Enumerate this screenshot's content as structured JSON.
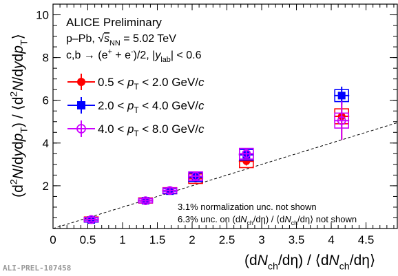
{
  "chart_data": {
    "type": "scatter",
    "title": "ALICE Preliminary",
    "header_lines": [
      {
        "segments": [
          [
            "p–Pb, ",
            "normal"
          ],
          [
            "√",
            "normal"
          ],
          [
            "s",
            "italic-overline"
          ],
          [
            "NN",
            "sub"
          ],
          [
            " = 5.02 TeV",
            "normal"
          ]
        ]
      },
      {
        "segments": [
          [
            "c,b → (e",
            "normal"
          ],
          [
            "+",
            "sup"
          ],
          [
            " + e",
            "normal"
          ],
          [
            "-",
            "sup"
          ],
          [
            ")/2, |",
            "normal"
          ],
          [
            "y",
            "italic"
          ],
          [
            "lab",
            "sub"
          ],
          [
            "| < 0.6",
            "normal"
          ]
        ]
      }
    ],
    "xlabel_parts": [
      [
        "(d",
        "normal"
      ],
      [
        "N",
        "italic"
      ],
      [
        "ch",
        "sub"
      ],
      [
        "/dη) / ⟨d",
        "normal"
      ],
      [
        "N",
        "italic"
      ],
      [
        "ch",
        "sub"
      ],
      [
        "/dη⟩",
        "normal"
      ]
    ],
    "ylabel_parts": [
      [
        "(d",
        "normal"
      ],
      [
        "2",
        "sup"
      ],
      [
        "N",
        "italic"
      ],
      [
        "/d",
        "normal"
      ],
      [
        "y",
        "italic"
      ],
      [
        "d",
        "normal"
      ],
      [
        "p",
        "italic"
      ],
      [
        "T",
        "sub"
      ],
      [
        ") / ⟨d",
        "normal"
      ],
      [
        "2",
        "sup"
      ],
      [
        "N",
        "italic"
      ],
      [
        "/d",
        "normal"
      ],
      [
        "y",
        "italic"
      ],
      [
        "d",
        "normal"
      ],
      [
        "p",
        "italic"
      ],
      [
        "T",
        "sub"
      ],
      [
        "⟩",
        "normal"
      ]
    ],
    "xlim": [
      0,
      4.95
    ],
    "ylim": [
      0,
      10.5
    ],
    "xticks": [
      0,
      0.5,
      1,
      1.5,
      2,
      2.5,
      3,
      3.5,
      4,
      4.5
    ],
    "xtick_labels": [
      "0",
      "0.5",
      "1",
      "1.5",
      "2",
      "2.5",
      "3",
      "3.5",
      "4",
      "4.5"
    ],
    "yticks": [
      2,
      4,
      6,
      8,
      10
    ],
    "ytick_labels": [
      "2",
      "4",
      "6",
      "8",
      "10"
    ],
    "grid": false,
    "legend_position": "upper-left",
    "reference_line": {
      "style": "dashed",
      "x": [
        0,
        4.95
      ],
      "y": [
        0,
        4.95
      ]
    },
    "series": [
      {
        "name_parts": [
          [
            "0.5 < ",
            "normal"
          ],
          [
            "p",
            "italic"
          ],
          [
            "T",
            "sub"
          ],
          [
            " < 2.0 GeV/",
            "normal"
          ],
          [
            "c",
            "italic"
          ]
        ],
        "color": "#ff0000",
        "marker": "filled-circle",
        "x": [
          0.55,
          1.33,
          1.68,
          2.05,
          2.78,
          4.15
        ],
        "y": [
          0.42,
          1.31,
          1.77,
          2.33,
          3.15,
          5.25
        ],
        "yerr": [
          0.1,
          0.1,
          0.12,
          0.15,
          0.2,
          1.1
        ],
        "sys": [
          0.12,
          0.12,
          0.14,
          0.22,
          0.3,
          0.35
        ]
      },
      {
        "name_parts": [
          [
            "2.0 < ",
            "normal"
          ],
          [
            "p",
            "italic"
          ],
          [
            "T",
            "sub"
          ],
          [
            " < 4.0 GeV/",
            "normal"
          ],
          [
            "c",
            "italic"
          ]
        ],
        "color": "#0000ff",
        "marker": "filled-square",
        "x": [
          0.55,
          1.33,
          1.68,
          2.05,
          2.78,
          4.15
        ],
        "y": [
          0.4,
          1.3,
          1.75,
          2.4,
          3.45,
          6.22
        ],
        "yerr": [
          0.06,
          0.06,
          0.08,
          0.1,
          0.12,
          0.42
        ],
        "sys": [
          0.1,
          0.1,
          0.12,
          0.2,
          0.25,
          0.28
        ]
      },
      {
        "name_parts": [
          [
            "4.0 < ",
            "normal"
          ],
          [
            "p",
            "italic"
          ],
          [
            "T",
            "sub"
          ],
          [
            " < 8.0 GeV/",
            "normal"
          ],
          [
            "c",
            "italic"
          ]
        ],
        "color": "#cc00ff",
        "marker": "open-circle",
        "x": [
          0.55,
          1.33,
          1.68,
          2.05,
          2.78,
          4.15
        ],
        "y": [
          0.42,
          1.3,
          1.78,
          2.45,
          3.5,
          5.05
        ],
        "yerr": [
          0.08,
          0.08,
          0.1,
          0.12,
          0.15,
          0.9
        ],
        "sys": [
          0.1,
          0.1,
          0.12,
          0.2,
          0.25,
          0.35
        ]
      }
    ],
    "notes": [
      {
        "segments": [
          [
            "3.1% normalization unc. not shown",
            "normal"
          ]
        ]
      },
      {
        "segments": [
          [
            "6.3% unc. on (d",
            "normal"
          ],
          [
            "N",
            "italic"
          ],
          [
            "ch",
            "sub"
          ],
          [
            "/dη) / ⟨d",
            "normal"
          ],
          [
            "N",
            "italic"
          ],
          [
            "ch",
            "sub"
          ],
          [
            "/dη⟩  not shown",
            "normal"
          ]
        ]
      }
    ],
    "watermark": "ALI-PREL-107458"
  }
}
